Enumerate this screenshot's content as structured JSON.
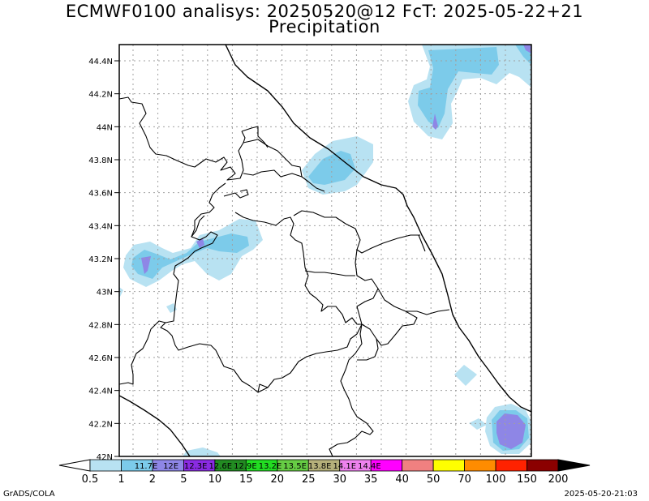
{
  "title": {
    "line1": "ECMWF0100 analisys: 20250520@12 FcT: 2025-05-22+21",
    "line2": "Precipitation"
  },
  "axes": {
    "lat_labels": [
      "44.4N",
      "44.2N",
      "44N",
      "43.8N",
      "43.6N",
      "43.4N",
      "43.2N",
      "43N",
      "42.8N",
      "42.6N",
      "42.4N",
      "42.2N",
      "42N"
    ]
  },
  "colorbar": {
    "values": [
      "0.5",
      "1",
      "2",
      "5",
      "10",
      "15",
      "20",
      "25",
      "30",
      "35",
      "40",
      "50",
      "70",
      "100",
      "150",
      "200"
    ],
    "colors": [
      "#ffffff",
      "#b8e2f2",
      "#7ccbea",
      "#8e86e6",
      "#8a2be2",
      "#228b22",
      "#22dd22",
      "#66cc44",
      "#b5b07a",
      "#ee82ee",
      "#ff00ff",
      "#f08080",
      "#ffff00",
      "#ff8c00",
      "#ff2200",
      "#8b0000",
      "#000000"
    ],
    "overlay_labels": [
      "11.7E",
      "12E",
      "12.3E",
      "12.6E",
      "12.9E",
      "13.2E",
      "13.5E",
      "13.8E",
      "14.1E",
      "14.4E"
    ]
  },
  "footer": {
    "left": "GrADS/COLA",
    "right": "2025-05-20-21:03"
  }
}
